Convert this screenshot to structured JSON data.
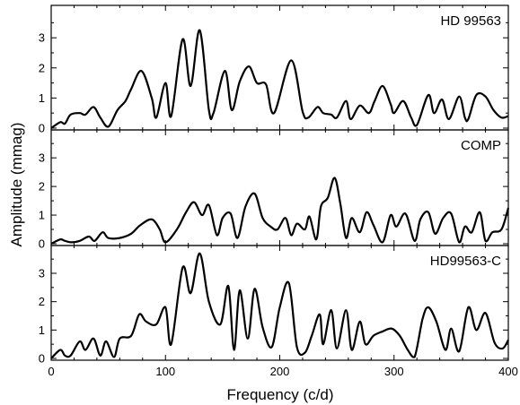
{
  "chart_data": {
    "type": "line",
    "shared_xlabel": "Frequency (c/d)",
    "shared_ylabel": "Amplitude (mmag)",
    "xlim": [
      0,
      400
    ],
    "x_ticks": [
      "0",
      "100",
      "200",
      "300",
      "400"
    ],
    "x_minor_step": 20,
    "line_color": "#000000",
    "panels": [
      {
        "label": "HD 99563",
        "ylim": [
          0,
          3.6
        ],
        "y_ticks": [
          "0",
          "1",
          "2",
          "3"
        ],
        "x": [
          0,
          8,
          12,
          17,
          25,
          30,
          37,
          43,
          50,
          58,
          65,
          70,
          79,
          88,
          92,
          100,
          105,
          115,
          122,
          130,
          138,
          142,
          152,
          158,
          165,
          173,
          180,
          188,
          195,
          210,
          220,
          225,
          233,
          238,
          245,
          250,
          258,
          262,
          270,
          278,
          283,
          290,
          297,
          300,
          308,
          315,
          320,
          330,
          335,
          342,
          348,
          357,
          362,
          365,
          372,
          380,
          387,
          394,
          400
        ],
        "y": [
          0,
          0.2,
          0.15,
          0.45,
          0.5,
          0.45,
          0.7,
          0.35,
          0.05,
          0.6,
          0.9,
          1.3,
          1.9,
          1.0,
          0.35,
          1.5,
          0.4,
          2.95,
          1.4,
          3.25,
          0.6,
          0.5,
          1.9,
          0.6,
          1.55,
          2.05,
          1.5,
          1.45,
          0.5,
          2.25,
          0.55,
          0.35,
          0.7,
          0.5,
          0.45,
          0.35,
          0.9,
          0.3,
          0.75,
          0.5,
          0.9,
          1.4,
          0.8,
          0.5,
          0.9,
          0.35,
          0.1,
          1.1,
          0.5,
          0.95,
          0.3,
          1.05,
          0.35,
          0.3,
          1.1,
          1.05,
          0.6,
          0.35,
          0.4
        ]
      },
      {
        "label": "COMP",
        "ylim": [
          0,
          3.6
        ],
        "y_ticks": [
          "0",
          "1",
          "2",
          "3"
        ],
        "x": [
          0,
          8,
          12,
          18,
          25,
          33,
          38,
          45,
          50,
          60,
          70,
          78,
          88,
          95,
          100,
          110,
          118,
          125,
          132,
          138,
          145,
          150,
          157,
          163,
          170,
          178,
          185,
          192,
          198,
          205,
          210,
          215,
          222,
          226,
          232,
          236,
          242,
          248,
          253,
          258,
          263,
          270,
          276,
          282,
          290,
          297,
          302,
          310,
          318,
          323,
          330,
          336,
          343,
          350,
          357,
          362,
          368,
          375,
          380,
          386,
          394,
          400
        ],
        "y": [
          0,
          0.15,
          0.1,
          0.05,
          0.1,
          0.25,
          0.1,
          0.4,
          0.2,
          0.2,
          0.35,
          0.65,
          0.85,
          0.5,
          0.05,
          0.5,
          1.1,
          1.45,
          1.0,
          1.35,
          0.3,
          0.9,
          1.05,
          0.2,
          1.3,
          1.75,
          0.9,
          0.6,
          0.5,
          0.9,
          0.3,
          0.7,
          0.5,
          0.95,
          0.15,
          1.3,
          1.6,
          2.3,
          1.4,
          0.2,
          0.9,
          0.4,
          1.1,
          0.65,
          0.05,
          1.0,
          0.6,
          1.05,
          0.1,
          0.85,
          1.1,
          0.35,
          0.9,
          1.05,
          0.05,
          0.6,
          0.4,
          1.1,
          0.1,
          0.4,
          0.5,
          1.25
        ]
      },
      {
        "label": "HD99563-C",
        "ylim": [
          0,
          3.6
        ],
        "y_ticks": [
          "0",
          "1",
          "2",
          "3"
        ],
        "x": [
          0,
          8,
          12,
          17,
          25,
          30,
          37,
          43,
          48,
          55,
          60,
          70,
          77,
          83,
          92,
          100,
          105,
          115,
          122,
          130,
          138,
          148,
          155,
          160,
          165,
          172,
          178,
          185,
          193,
          200,
          208,
          215,
          222,
          228,
          235,
          238,
          245,
          250,
          258,
          263,
          270,
          275,
          282,
          290,
          298,
          305,
          312,
          318,
          325,
          330,
          337,
          345,
          350,
          357,
          365,
          372,
          380,
          388,
          395,
          400
        ],
        "y": [
          0,
          0.3,
          0.1,
          0.1,
          0.6,
          0.3,
          0.7,
          0.1,
          0.6,
          0.05,
          0.7,
          0.8,
          1.55,
          1.3,
          1.2,
          1.8,
          0.5,
          3.2,
          2.3,
          3.7,
          2.0,
          1.2,
          2.55,
          0.3,
          2.4,
          0.7,
          2.45,
          1.1,
          0.4,
          1.8,
          2.65,
          0.4,
          0.2,
          0.8,
          1.55,
          0.5,
          1.7,
          0.35,
          1.7,
          0.3,
          1.3,
          0.5,
          0.8,
          0.95,
          1.05,
          0.8,
          0.3,
          0.05,
          1.4,
          1.8,
          1.3,
          0.3,
          1.05,
          0.25,
          1.8,
          1.0,
          1.6,
          0.55,
          0.35,
          0.65
        ]
      }
    ]
  }
}
